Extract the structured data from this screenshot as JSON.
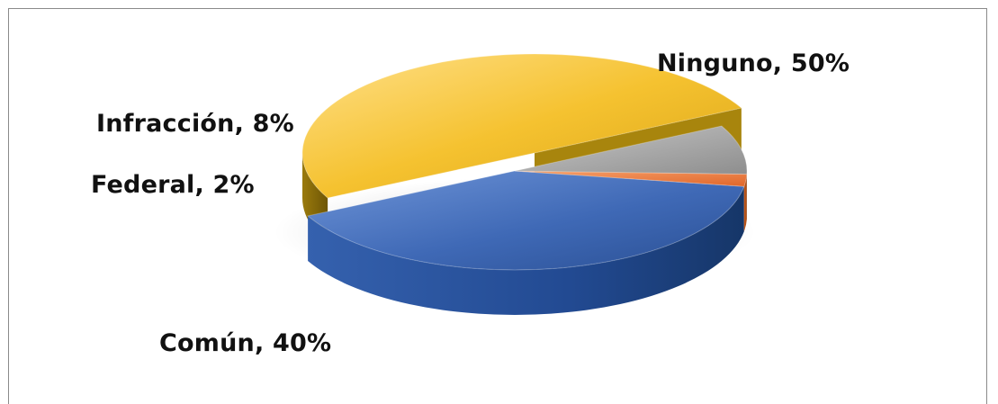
{
  "chart_data": {
    "type": "pie",
    "style": "3d-exploded",
    "slices": [
      {
        "name": "Ninguno",
        "value": 50,
        "label": "Ninguno, 50%",
        "color": "#F5C230",
        "exploded": true
      },
      {
        "name": "Común",
        "value": 40,
        "label": "Común, 40%",
        "color": "#3F69B6"
      },
      {
        "name": "Federal",
        "value": 2,
        "label": "Federal, 2%",
        "color": "#ED7B34"
      },
      {
        "name": "Infracción",
        "value": 8,
        "label": "Infracción, 8%",
        "color": "#A3A3A3"
      }
    ],
    "legend": "none"
  }
}
